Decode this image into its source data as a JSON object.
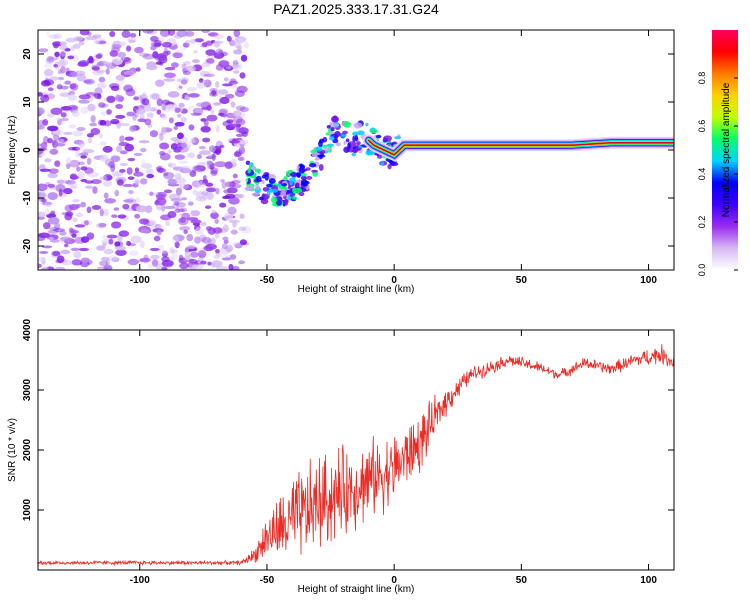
{
  "title": "PAZ1.2025.333.17.31.G24",
  "colors": {
    "snr_line": "#ee2a24",
    "spectrogram_noise": "#8a2be2",
    "spectrogram_peak": "#e0001b"
  },
  "chart_data": [
    {
      "type": "heatmap",
      "name": "spectrogram",
      "xlabel": "Height of straight line (km)",
      "ylabel": "Frequency (Hz)",
      "xlim": [
        -140,
        110
      ],
      "ylim": [
        -25,
        25
      ],
      "xticks": [
        -100,
        -50,
        0,
        50,
        100
      ],
      "yticks": [
        -20,
        -10,
        0,
        10,
        20
      ],
      "noise_region_x": [
        -140,
        -58
      ],
      "ridge": [
        {
          "x": -58,
          "y": -5
        },
        {
          "x": -54,
          "y": -7
        },
        {
          "x": -50,
          "y": -8
        },
        {
          "x": -46,
          "y": -9
        },
        {
          "x": -42,
          "y": -8
        },
        {
          "x": -38,
          "y": -7
        },
        {
          "x": -34,
          "y": -5
        },
        {
          "x": -30,
          "y": -2
        },
        {
          "x": -27,
          "y": 1
        },
        {
          "x": -24,
          "y": 4
        },
        {
          "x": -20,
          "y": 3
        },
        {
          "x": -16,
          "y": 2
        },
        {
          "x": -12,
          "y": 3
        },
        {
          "x": -8,
          "y": 1
        },
        {
          "x": -4,
          "y": 0
        },
        {
          "x": 0,
          "y": -1
        },
        {
          "x": 4,
          "y": 1
        },
        {
          "x": 8,
          "y": 1
        },
        {
          "x": 15,
          "y": 1
        },
        {
          "x": 25,
          "y": 1
        },
        {
          "x": 40,
          "y": 1
        },
        {
          "x": 55,
          "y": 1
        },
        {
          "x": 70,
          "y": 1
        },
        {
          "x": 85,
          "y": 1.5
        },
        {
          "x": 100,
          "y": 1.5
        },
        {
          "x": 110,
          "y": 1.5
        }
      ]
    },
    {
      "type": "colorbar",
      "name": "colorbar",
      "label": "Normalized spectral amplitude",
      "range": [
        0.0,
        1.0
      ],
      "ticks": [
        "0.0",
        "0.2",
        "0.4",
        "0.6",
        "0.8"
      ],
      "tick_values": [
        0.0,
        0.2,
        0.4,
        0.6,
        0.8
      ],
      "colormap": [
        "#ffffff",
        "#d6b8f2",
        "#9a2cf0",
        "#3b00ff",
        "#0000ff",
        "#00d4ff",
        "#00ff66",
        "#bfff00",
        "#ffd200",
        "#ff7a00",
        "#ff0000",
        "#ff0060"
      ]
    },
    {
      "type": "line",
      "name": "snr",
      "xlabel": "Height of straight line (km)",
      "ylabel": "SNR (10 * v/v)",
      "xlim": [
        -140,
        110
      ],
      "ylim": [
        0,
        4000
      ],
      "xticks": [
        -100,
        -50,
        0,
        50,
        100
      ],
      "yticks": [
        1000,
        2000,
        3000,
        4000
      ],
      "envelope": [
        {
          "x": -140,
          "mean": 120,
          "noise": 40
        },
        {
          "x": -60,
          "mean": 120,
          "noise": 40
        },
        {
          "x": -55,
          "mean": 250,
          "noise": 150
        },
        {
          "x": -50,
          "mean": 550,
          "noise": 450
        },
        {
          "x": -40,
          "mean": 800,
          "noise": 900
        },
        {
          "x": -30,
          "mean": 1100,
          "noise": 1000
        },
        {
          "x": -20,
          "mean": 1300,
          "noise": 900
        },
        {
          "x": -10,
          "mean": 1500,
          "noise": 800
        },
        {
          "x": 0,
          "mean": 1700,
          "noise": 700
        },
        {
          "x": 10,
          "mean": 2100,
          "noise": 600
        },
        {
          "x": 20,
          "mean": 2800,
          "noise": 300
        },
        {
          "x": 30,
          "mean": 3250,
          "noise": 150
        },
        {
          "x": 45,
          "mean": 3500,
          "noise": 120
        },
        {
          "x": 55,
          "mean": 3400,
          "noise": 120
        },
        {
          "x": 65,
          "mean": 3250,
          "noise": 100
        },
        {
          "x": 75,
          "mean": 3450,
          "noise": 120
        },
        {
          "x": 85,
          "mean": 3350,
          "noise": 120
        },
        {
          "x": 95,
          "mean": 3500,
          "noise": 150
        },
        {
          "x": 105,
          "mean": 3600,
          "noise": 200
        },
        {
          "x": 110,
          "mean": 3450,
          "noise": 150
        }
      ]
    }
  ]
}
